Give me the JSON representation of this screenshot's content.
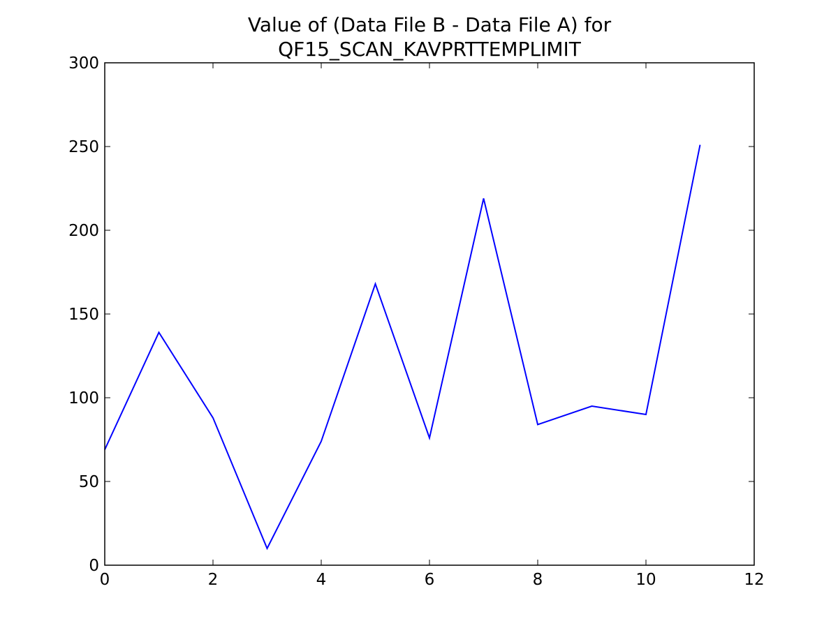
{
  "chart_data": {
    "type": "line",
    "title_lines": [
      "Value of (Data File B - Data File A) for",
      "QF15_SCAN_KAVPRTTEMPLIMIT"
    ],
    "xlabel": "",
    "ylabel": "",
    "xlim": [
      0,
      12
    ],
    "ylim": [
      0,
      300
    ],
    "x_ticks": [
      0,
      2,
      4,
      6,
      8,
      10,
      12
    ],
    "y_ticks": [
      0,
      50,
      100,
      150,
      200,
      250,
      300
    ],
    "grid": false,
    "legend": false,
    "series": [
      {
        "color": "#0000ff",
        "x": [
          0,
          1,
          2,
          3,
          4,
          5,
          6,
          7,
          8,
          9,
          10,
          11
        ],
        "y": [
          69,
          139,
          88,
          10,
          74,
          168,
          76,
          219,
          84,
          95,
          90,
          251
        ]
      }
    ]
  }
}
